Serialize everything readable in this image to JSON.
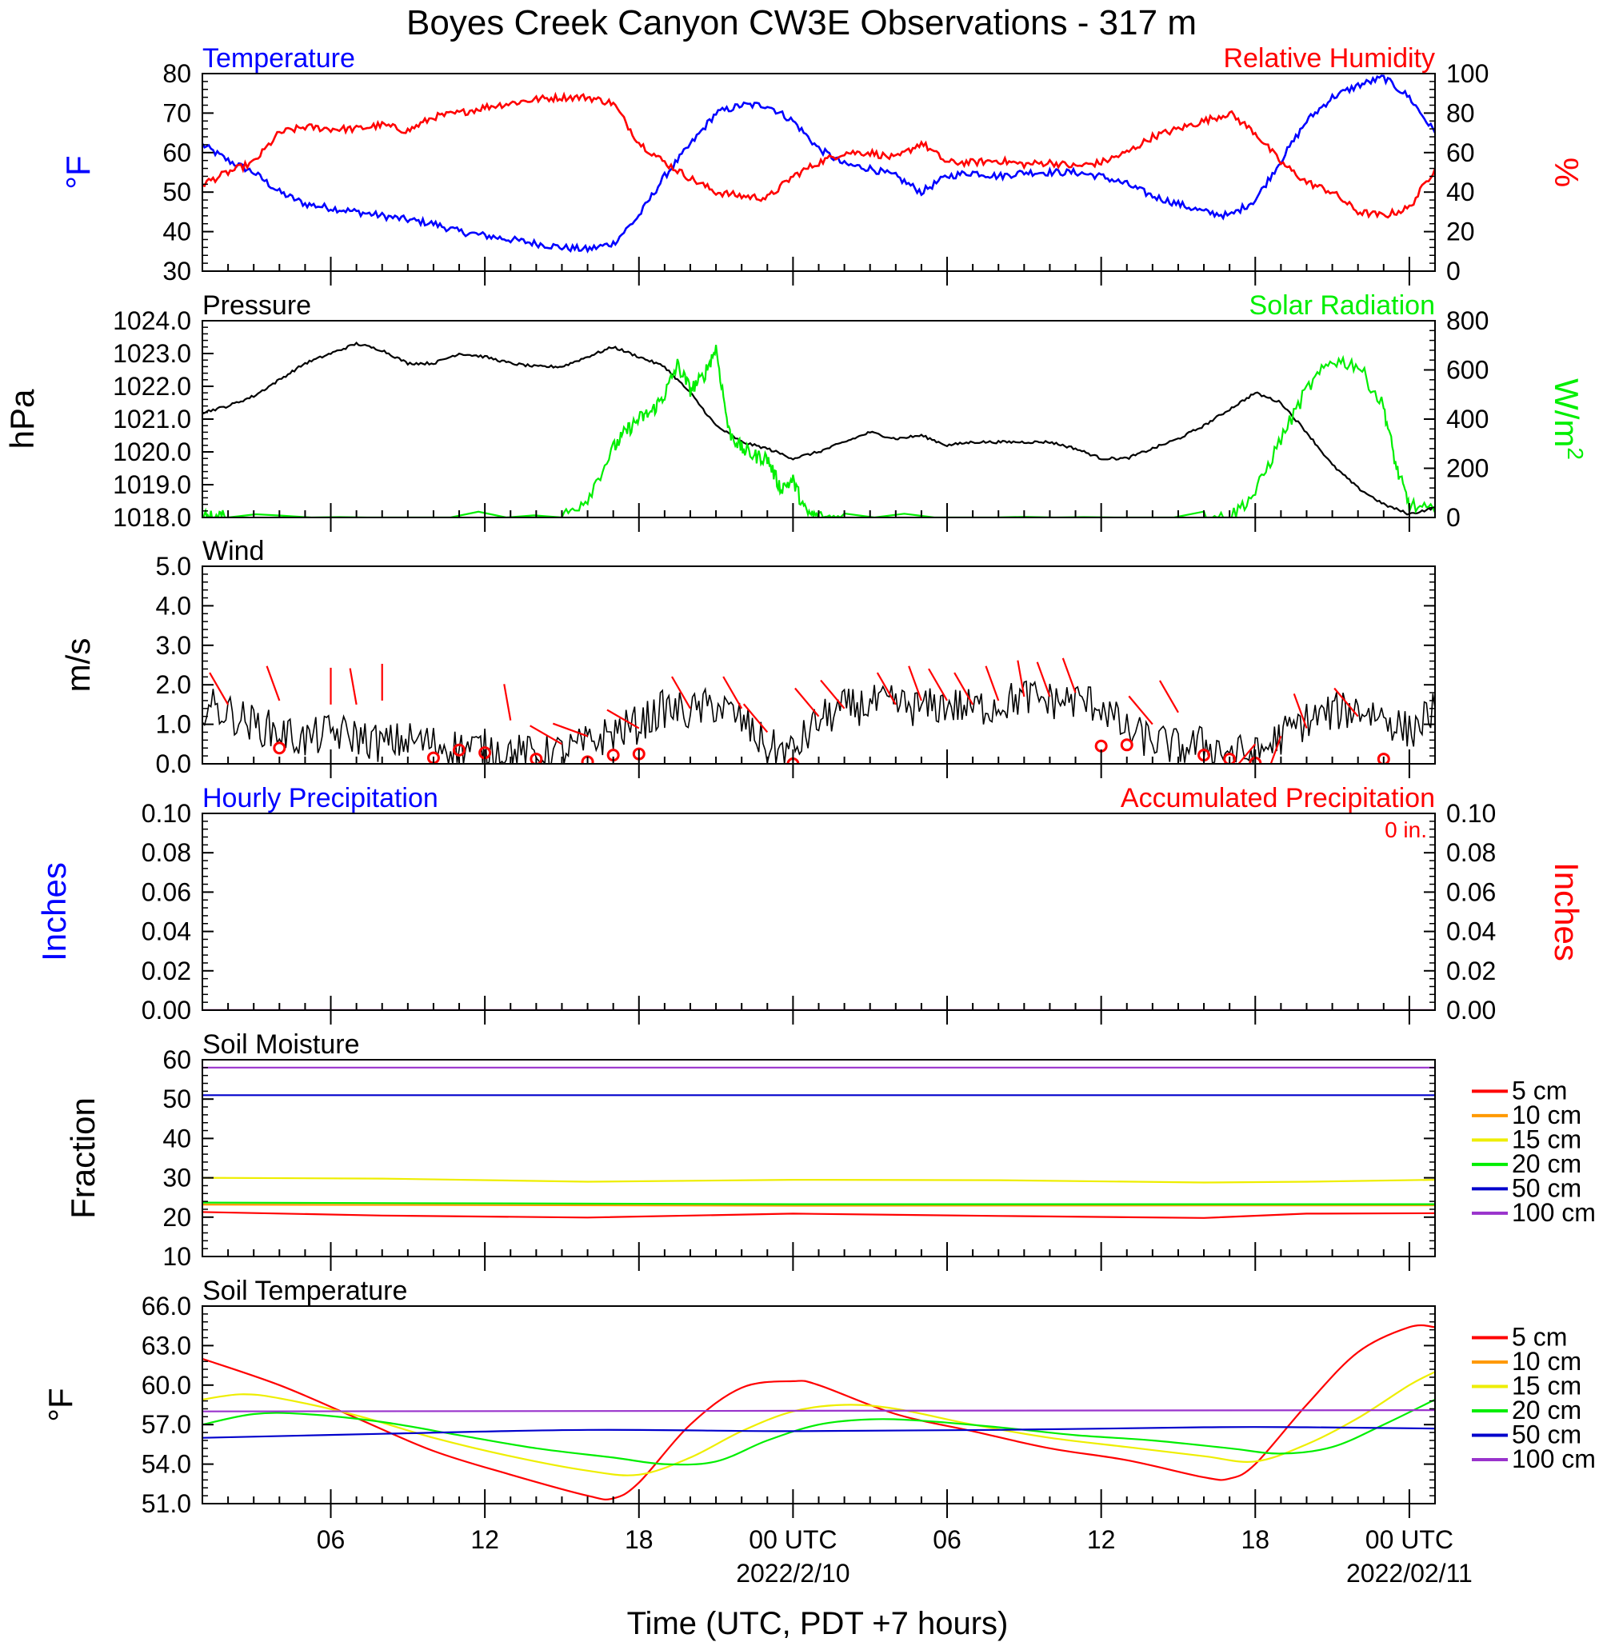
{
  "title": "Boyes Creek Canyon CW3E Observations - 317 m",
  "colors": {
    "blue": "#0000ff",
    "red": "#ff0000",
    "green": "#00ee00",
    "black": "#000000",
    "orange": "#ff9900",
    "yellow": "#eeee00",
    "navy": "#0000cc",
    "purple": "#9933cc"
  },
  "time_axis": {
    "tick_labels": [
      "06",
      "12",
      "18",
      "00 UTC",
      "06",
      "12",
      "18",
      "00 UTC"
    ],
    "tick_hours": [
      6,
      12,
      18,
      24,
      30,
      36,
      42,
      48
    ],
    "date_labels": [
      {
        "hour": 24,
        "text": "2022/2/10"
      },
      {
        "hour": 48,
        "text": "2022/02/11"
      }
    ],
    "xlabel": "Time (UTC, PDT +7 hours)",
    "range_hours": [
      1,
      49
    ]
  },
  "chart_data": [
    {
      "type": "line",
      "id": "temp_rh",
      "left_label": "Temperature",
      "right_label": "Relative Humidity",
      "ylabel_left": "°F",
      "ylabel_right": "%",
      "ylim_left": [
        30,
        80
      ],
      "ylim_right": [
        0,
        100
      ],
      "yticks_left": [
        "30",
        "40",
        "50",
        "60",
        "70",
        "80"
      ],
      "yticks_right": [
        "0",
        "20",
        "40",
        "60",
        "80",
        "100"
      ],
      "series": [
        {
          "axis": "left",
          "color": "blue",
          "x": [
            1,
            2,
            3,
            4,
            5,
            6,
            7,
            8,
            9,
            10,
            11,
            12,
            13,
            14,
            15,
            16,
            17,
            18,
            19,
            20,
            21,
            22,
            23,
            24,
            25,
            26,
            27,
            28,
            29,
            30,
            31,
            32,
            33,
            34,
            35,
            36,
            37,
            38,
            39,
            40,
            41,
            42,
            43,
            44,
            45,
            46,
            47,
            48,
            49
          ],
          "y": [
            62,
            58,
            55,
            50,
            47,
            46,
            45,
            44,
            43,
            42,
            40,
            39,
            38,
            37,
            36,
            35.5,
            37,
            44,
            54,
            62,
            70,
            72,
            72,
            68,
            61,
            57,
            56,
            54,
            50,
            54,
            55,
            54,
            55,
            55,
            55,
            54,
            52,
            49,
            47,
            45,
            44,
            48,
            58,
            68,
            74,
            77,
            79,
            74,
            65
          ]
        },
        {
          "axis": "right",
          "color": "red",
          "x": [
            1,
            2,
            3,
            4,
            5,
            6,
            7,
            8,
            9,
            10,
            11,
            12,
            13,
            14,
            15,
            16,
            17,
            18,
            19,
            20,
            21,
            22,
            23,
            24,
            25,
            26,
            27,
            28,
            29,
            30,
            31,
            32,
            33,
            34,
            35,
            36,
            37,
            38,
            39,
            40,
            41,
            42,
            43,
            44,
            45,
            46,
            47,
            48,
            49
          ],
          "y": [
            44,
            50,
            55,
            70,
            73,
            72,
            72,
            74,
            71,
            78,
            80,
            83,
            85,
            87,
            88,
            88,
            85,
            65,
            55,
            47,
            40,
            38,
            37,
            48,
            55,
            60,
            60,
            57,
            65,
            55,
            55,
            56,
            54,
            55,
            53,
            55,
            60,
            68,
            72,
            76,
            80,
            70,
            55,
            45,
            40,
            30,
            28,
            32,
            52
          ]
        }
      ]
    },
    {
      "type": "line",
      "id": "pressure_solar",
      "left_label": "Pressure",
      "right_label": "Solar Radiation",
      "ylabel_left": "hPa",
      "ylabel_right": "W/m",
      "ylabel_right_sup": "2",
      "ylim_left": [
        1018,
        1024
      ],
      "ylim_right": [
        0,
        800
      ],
      "yticks_left": [
        "1018.0",
        "1019.0",
        "1020.0",
        "1021.0",
        "1022.0",
        "1023.0",
        "1024.0"
      ],
      "yticks_right": [
        "0",
        "200",
        "400",
        "600",
        "800"
      ],
      "series": [
        {
          "axis": "left",
          "color": "black",
          "x": [
            1,
            2,
            3,
            4,
            5,
            6,
            7,
            8,
            9,
            10,
            11,
            12,
            13,
            14,
            15,
            16,
            17,
            18,
            19,
            20,
            21,
            22,
            23,
            24,
            25,
            26,
            27,
            28,
            29,
            30,
            31,
            32,
            33,
            34,
            35,
            36,
            37,
            38,
            39,
            40,
            41,
            42,
            43,
            44,
            45,
            46,
            47,
            48,
            49
          ],
          "y": [
            1021.2,
            1021.4,
            1021.7,
            1022.2,
            1022.7,
            1023.0,
            1023.3,
            1023.1,
            1022.7,
            1022.7,
            1023.0,
            1022.9,
            1022.7,
            1022.6,
            1022.6,
            1022.9,
            1023.2,
            1022.9,
            1022.6,
            1021.8,
            1020.8,
            1020.3,
            1020.1,
            1019.8,
            1020.0,
            1020.3,
            1020.6,
            1020.4,
            1020.5,
            1020.2,
            1020.3,
            1020.3,
            1020.3,
            1020.3,
            1020.1,
            1019.8,
            1019.8,
            1020.1,
            1020.4,
            1020.8,
            1021.3,
            1021.8,
            1021.5,
            1020.6,
            1019.6,
            1018.9,
            1018.4,
            1018.1,
            1018.3
          ]
        },
        {
          "axis": "right",
          "color": "green",
          "x": [
            1,
            1.5,
            2,
            15,
            16,
            17,
            17.5,
            18,
            18.5,
            19,
            19.5,
            20,
            20.5,
            21,
            21.5,
            22,
            22.5,
            23,
            23.5,
            24,
            24.5,
            25,
            26,
            40,
            41,
            42,
            43,
            44,
            45,
            46,
            47,
            47.5,
            48,
            49
          ],
          "y": [
            0,
            0,
            0,
            0,
            80,
            280,
            350,
            400,
            430,
            500,
            620,
            520,
            570,
            690,
            350,
            280,
            250,
            240,
            120,
            150,
            20,
            0,
            0,
            0,
            0,
            100,
            320,
            520,
            640,
            620,
            450,
            200,
            50,
            20
          ]
        }
      ]
    },
    {
      "type": "line",
      "id": "wind",
      "left_label": "Wind",
      "ylabel_left": "m/s",
      "ylim_left": [
        0,
        5
      ],
      "yticks_left": [
        "0.0",
        "1.0",
        "2.0",
        "3.0",
        "4.0",
        "5.0"
      ],
      "series": [
        {
          "axis": "left",
          "color": "black",
          "x": [
            1,
            2,
            3,
            4,
            5,
            6,
            7,
            8,
            9,
            10,
            11,
            12,
            13,
            14,
            15,
            16,
            17,
            18,
            19,
            20,
            21,
            22,
            23,
            24,
            25,
            26,
            27,
            28,
            29,
            30,
            31,
            32,
            33,
            34,
            35,
            36,
            37,
            38,
            39,
            40,
            41,
            42,
            43,
            44,
            45,
            46,
            47,
            48,
            49
          ],
          "y": [
            1.5,
            1.3,
            1.0,
            0.8,
            0.6,
            0.8,
            0.7,
            0.5,
            0.6,
            0.5,
            0.4,
            0.4,
            0.3,
            0.2,
            0.3,
            0.5,
            0.8,
            1.0,
            1.4,
            1.3,
            1.5,
            1.1,
            0.4,
            0.3,
            1.1,
            1.4,
            1.5,
            1.5,
            1.4,
            1.5,
            1.4,
            1.5,
            1.7,
            1.6,
            1.6,
            1.5,
            0.8,
            0.6,
            0.4,
            0.5,
            0.3,
            0.2,
            0.7,
            1.1,
            1.3,
            1.4,
            1.2,
            0.8,
            1.4
          ]
        }
      ],
      "barb_markers": {
        "color": "red",
        "calm_hours": [
          4,
          10,
          11,
          12,
          14,
          16,
          17,
          18,
          24,
          36,
          37,
          40,
          41,
          42,
          47
        ],
        "calm_values": [
          0.4,
          0.15,
          0.35,
          0.28,
          0.12,
          0.05,
          0.22,
          0.25,
          0.0,
          0.45,
          0.48,
          0.22,
          0.12,
          0.02,
          0.12
        ],
        "barb_hours": [
          2,
          4,
          6,
          7,
          8,
          13,
          15,
          16,
          18,
          20,
          22,
          23,
          25,
          26,
          28,
          29,
          30,
          31,
          32,
          33,
          34,
          35,
          38,
          39,
          42,
          43,
          44,
          46
        ],
        "barb_values": [
          1.5,
          1.6,
          1.5,
          1.5,
          1.6,
          1.1,
          0.5,
          0.7,
          0.9,
          1.4,
          1.4,
          0.8,
          1.2,
          1.4,
          1.5,
          1.6,
          1.6,
          1.5,
          1.6,
          1.7,
          1.7,
          1.8,
          1.0,
          1.3,
          0.5,
          0.7,
          0.9,
          1.2
        ],
        "barb_dirs_deg": [
          330,
          340,
          0,
          350,
          0,
          350,
          300,
          290,
          300,
          330,
          330,
          320,
          320,
          320,
          330,
          340,
          330,
          330,
          340,
          350,
          340,
          340,
          320,
          330,
          220,
          200,
          340,
          320
        ]
      }
    },
    {
      "type": "line",
      "id": "precip",
      "left_label": "Hourly Precipitation",
      "right_label": "Accumulated Precipitation",
      "annotation": "0 in.",
      "ylabel_left": "Inches",
      "ylabel_right": "Inches",
      "ylim_left": [
        0,
        0.1
      ],
      "ylim_right": [
        0,
        0.1
      ],
      "yticks_left": [
        "0.00",
        "0.02",
        "0.04",
        "0.06",
        "0.08",
        "0.10"
      ],
      "yticks_right": [
        "0.00",
        "0.02",
        "0.04",
        "0.06",
        "0.08",
        "0.10"
      ],
      "series": [
        {
          "axis": "left",
          "color": "blue",
          "x": [
            1,
            49
          ],
          "y": [
            0,
            0
          ]
        },
        {
          "axis": "right",
          "color": "red",
          "x": [
            1,
            49
          ],
          "y": [
            0,
            0
          ]
        }
      ]
    },
    {
      "type": "line",
      "id": "soil_moisture",
      "left_label": "Soil Moisture",
      "ylabel_left": "Fraction",
      "ylim_left": [
        10,
        60
      ],
      "yticks_left": [
        "10",
        "20",
        "30",
        "40",
        "50",
        "60"
      ],
      "legend": [
        "5 cm",
        "10 cm",
        "15 cm",
        "20 cm",
        "50 cm",
        "100 cm"
      ],
      "series": [
        {
          "name": "5 cm",
          "color": "red",
          "x": [
            1,
            8,
            16,
            24,
            32,
            40,
            44,
            49
          ],
          "y": [
            21.3,
            20.4,
            19.9,
            20.9,
            20.3,
            19.8,
            20.9,
            21.0
          ]
        },
        {
          "name": "10 cm",
          "color": "orange",
          "x": [
            1,
            24,
            49
          ],
          "y": [
            23.2,
            22.9,
            23.0
          ]
        },
        {
          "name": "15 cm",
          "color": "yellow",
          "x": [
            1,
            8,
            16,
            24,
            32,
            40,
            44,
            49
          ],
          "y": [
            30.0,
            29.8,
            29.0,
            29.5,
            29.4,
            28.8,
            29.0,
            29.5
          ]
        },
        {
          "name": "20 cm",
          "color": "green",
          "x": [
            1,
            24,
            49
          ],
          "y": [
            23.7,
            23.3,
            23.3
          ]
        },
        {
          "name": "50 cm",
          "color": "navy",
          "x": [
            1,
            49
          ],
          "y": [
            51.0,
            51.0
          ]
        },
        {
          "name": "100 cm",
          "color": "purple",
          "x": [
            1,
            49
          ],
          "y": [
            58.0,
            58.0
          ]
        }
      ]
    },
    {
      "type": "line",
      "id": "soil_temperature",
      "left_label": "Soil Temperature",
      "ylabel_left": "°F",
      "ylim_left": [
        51,
        66
      ],
      "yticks_left": [
        "51.0",
        "54.0",
        "57.0",
        "60.0",
        "63.0",
        "66.0"
      ],
      "legend": [
        "5 cm",
        "10 cm",
        "15 cm",
        "20 cm",
        "50 cm",
        "100 cm"
      ],
      "series": [
        {
          "name": "5 cm",
          "color": "red",
          "x": [
            1,
            4,
            7,
            10,
            13,
            16,
            17,
            18,
            20,
            22,
            24,
            25,
            28,
            31,
            34,
            37,
            40,
            41,
            42,
            44,
            46,
            48,
            49
          ],
          "y": [
            62.0,
            60.0,
            57.5,
            55.0,
            53.2,
            51.6,
            51.4,
            52.6,
            57.0,
            59.8,
            60.3,
            60.0,
            57.8,
            56.5,
            55.2,
            54.3,
            53.0,
            52.9,
            54.0,
            58.5,
            62.5,
            64.4,
            64.4
          ]
        },
        {
          "name": "15 cm",
          "color": "yellow",
          "x": [
            1,
            2.5,
            4,
            7,
            10,
            13,
            16,
            18,
            20,
            22,
            24,
            26,
            28,
            31,
            34,
            37,
            40,
            42,
            44,
            46,
            48,
            49
          ],
          "y": [
            58.9,
            59.3,
            59.0,
            57.7,
            56.0,
            54.6,
            53.5,
            53.2,
            54.5,
            56.5,
            58.0,
            58.5,
            58.2,
            57.0,
            56.0,
            55.3,
            54.6,
            54.2,
            55.5,
            57.5,
            60.0,
            61.0
          ]
        },
        {
          "name": "20 cm",
          "color": "green",
          "x": [
            1,
            3,
            5,
            8,
            11,
            14,
            17,
            19,
            21,
            23,
            25,
            27,
            29,
            32,
            35,
            38,
            41,
            43,
            45,
            47,
            49
          ],
          "y": [
            57.0,
            57.8,
            57.8,
            57.2,
            56.2,
            55.2,
            54.5,
            54.0,
            54.2,
            55.8,
            57.0,
            57.4,
            57.3,
            56.8,
            56.2,
            55.8,
            55.2,
            54.8,
            55.3,
            57.0,
            58.9
          ]
        },
        {
          "name": "50 cm",
          "color": "navy",
          "x": [
            1,
            8,
            16,
            24,
            32,
            40,
            44,
            49
          ],
          "y": [
            56.0,
            56.3,
            56.6,
            56.5,
            56.6,
            56.8,
            56.8,
            56.7
          ]
        },
        {
          "name": "100 cm",
          "color": "purple",
          "x": [
            1,
            49
          ],
          "y": [
            58.0,
            58.1
          ]
        }
      ]
    }
  ]
}
